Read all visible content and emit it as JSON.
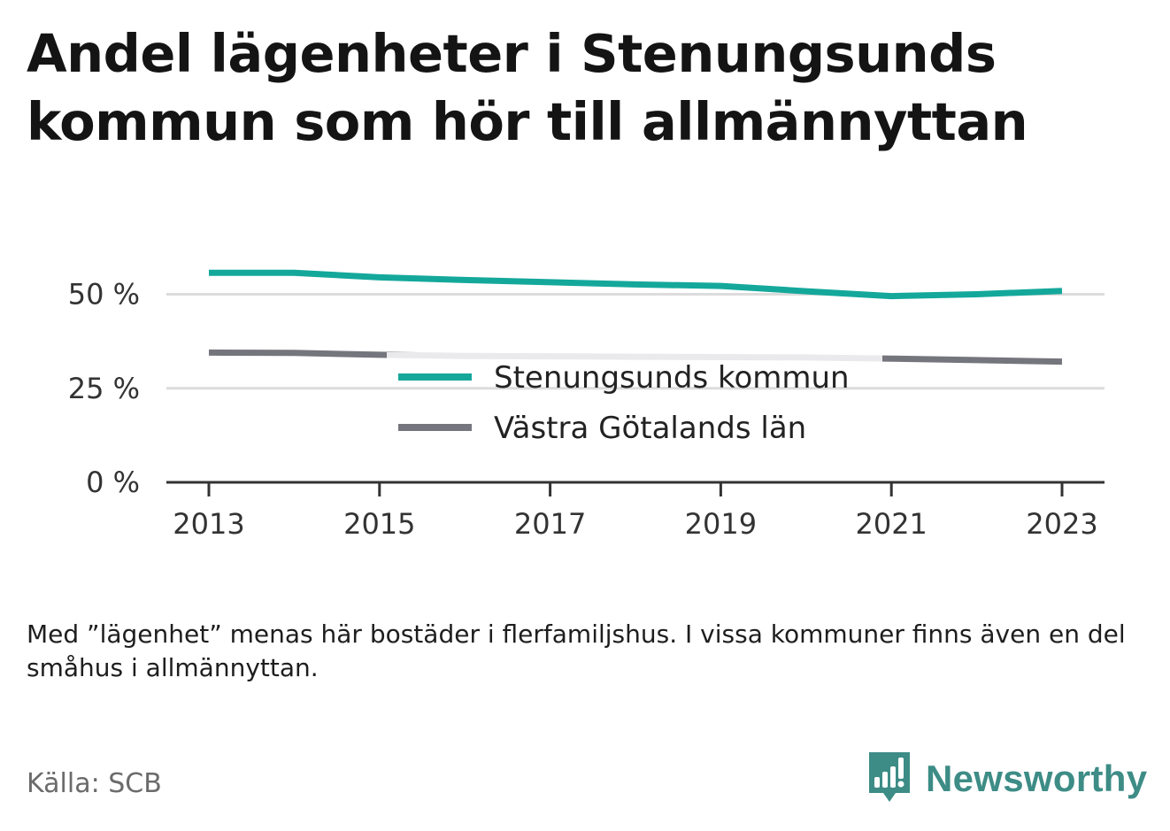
{
  "title": "Andel lägenheter i Stenungsunds kommun som hör till allmännyttan",
  "note": "Med ”lägenhet” menas här bostäder i flerfamiljshus. I vissa kommuner finns även en del småhus i allmännyttan.",
  "source": "Källa: SCB",
  "brand": {
    "name": "Newsworthy",
    "icon": "bar-chart-speech-bubble-icon",
    "color": "#3d8c86"
  },
  "chart_data": {
    "type": "line",
    "x": [
      2013,
      2014,
      2015,
      2016,
      2017,
      2018,
      2019,
      2020,
      2021,
      2022,
      2023
    ],
    "x_tick_labels": [
      "2013",
      "2015",
      "2017",
      "2019",
      "2021",
      "2023"
    ],
    "y_tick_labels": [
      "0 %",
      "25 %",
      "50 %"
    ],
    "y_ticks": [
      0,
      25,
      50
    ],
    "ylim": [
      0,
      60
    ],
    "grid": true,
    "legend_position": "inside-bottom-center",
    "series": [
      {
        "name": "Stenungsunds kommun",
        "color": "#14a89b",
        "values": [
          55.7,
          55.7,
          54.5,
          53.8,
          53.2,
          52.6,
          52.2,
          50.8,
          49.5,
          50.0,
          50.9
        ]
      },
      {
        "name": "Västra Götalands län",
        "color": "#75757d",
        "values": [
          34.5,
          34.4,
          33.9,
          33.6,
          33.5,
          33.4,
          33.3,
          33.2,
          32.9,
          32.5,
          32.1
        ]
      }
    ]
  }
}
